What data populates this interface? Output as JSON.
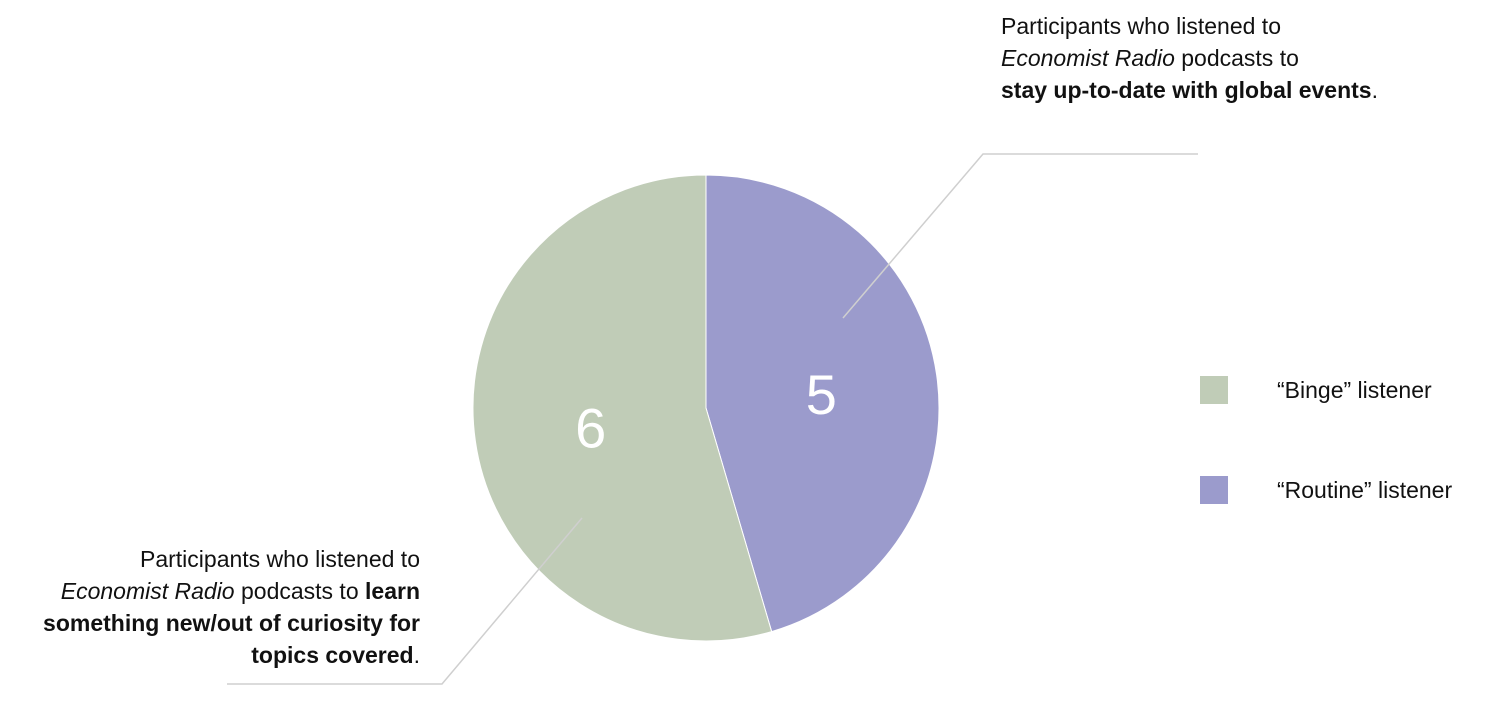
{
  "chart_data": {
    "type": "pie",
    "categories": [
      "“Binge” listener",
      "“Routine” listener"
    ],
    "values": [
      6,
      5
    ],
    "colors": [
      "#c0ccb7",
      "#9b9bcc"
    ],
    "data_labels": [
      "6",
      "5"
    ],
    "legend_position": "right"
  },
  "annotations": {
    "top": {
      "line1": "Participants who listened to",
      "italic": "Economist Radio",
      "line2_rest": " podcasts to",
      "bold": "stay up-to-date with global events",
      "tail": "."
    },
    "bottom": {
      "line1": "Participants who listened to",
      "italic": "Economist Radio",
      "mid": " podcasts to ",
      "bold": "learn something new/out of curiosity for topics covered",
      "tail": "."
    }
  },
  "legend": {
    "items": [
      {
        "label": "“Binge” listener",
        "color": "#c0ccb7"
      },
      {
        "label": "“Routine” listener",
        "color": "#9b9bcc"
      }
    ]
  }
}
